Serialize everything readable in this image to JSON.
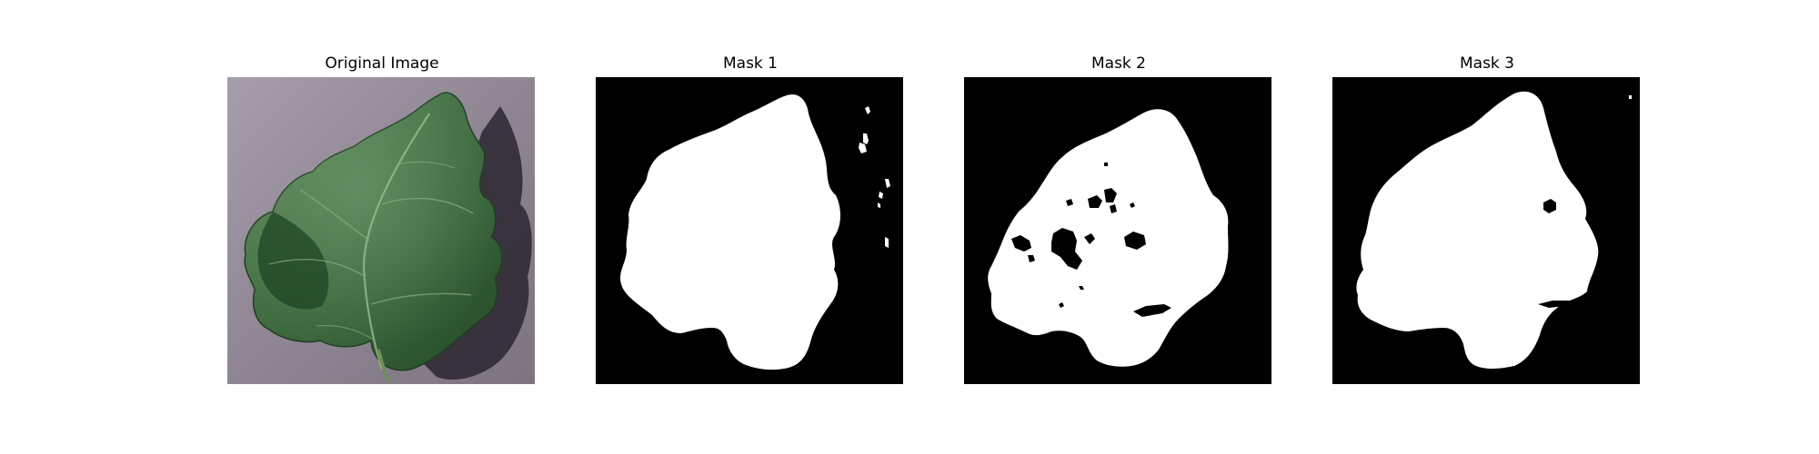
{
  "panels": [
    {
      "title": "Original Image",
      "content": "leaf photograph"
    },
    {
      "title": "Mask 1",
      "content": "binary segmentation mask"
    },
    {
      "title": "Mask 2",
      "content": "binary segmentation mask"
    },
    {
      "title": "Mask 3",
      "content": "binary segmentation mask"
    }
  ],
  "colors": {
    "background": "#ffffff",
    "mask_foreground": "#ffffff",
    "mask_background": "#000000",
    "leaf_green": "#3c6b3d",
    "surface_gray": "#8f8593"
  }
}
